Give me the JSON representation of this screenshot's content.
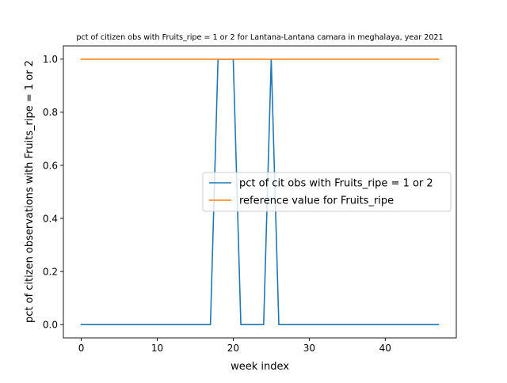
{
  "chart_data": {
    "type": "line",
    "title": "pct of citizen obs with Fruits_ripe = 1 or 2 for Lantana-Lantana camara in meghalaya, year 2021",
    "xlabel": "week index",
    "ylabel": "pct of citizen observations with Fruits_ripe = 1 or 2",
    "xlim": [
      -2.35,
      49.35
    ],
    "ylim": [
      -0.05,
      1.05
    ],
    "xticks": [
      0,
      10,
      20,
      30,
      40
    ],
    "yticks": [
      0.0,
      0.2,
      0.4,
      0.6,
      0.8,
      1.0
    ],
    "ytick_labels": [
      "0.0",
      "0.2",
      "0.4",
      "0.6",
      "0.8",
      "1.0"
    ],
    "grid": false,
    "legend_position": "center-right",
    "series": [
      {
        "name": "pct of cit obs with Fruits_ripe = 1 or 2",
        "color": "#1f77b4",
        "x": [
          0,
          1,
          2,
          3,
          4,
          5,
          6,
          7,
          8,
          9,
          10,
          11,
          12,
          13,
          14,
          15,
          16,
          17,
          18,
          19,
          20,
          21,
          22,
          23,
          24,
          25,
          26,
          27,
          28,
          29,
          30,
          31,
          32,
          33,
          34,
          35,
          36,
          37,
          38,
          39,
          40,
          41,
          42,
          43,
          44,
          45,
          46,
          47
        ],
        "values": [
          0,
          0,
          0,
          0,
          0,
          0,
          0,
          0,
          0,
          0,
          0,
          0,
          0,
          0,
          0,
          0,
          0,
          0,
          1,
          1,
          1,
          0,
          0,
          0,
          0,
          1,
          0,
          0,
          0,
          0,
          0,
          0,
          0,
          0,
          0,
          0,
          0,
          0,
          0,
          0,
          0,
          0,
          0,
          0,
          0,
          0,
          0,
          0
        ]
      },
      {
        "name": "reference value for Fruits_ripe",
        "color": "#ff7f0e",
        "x": [
          0,
          1,
          2,
          3,
          4,
          5,
          6,
          7,
          8,
          9,
          10,
          11,
          12,
          13,
          14,
          15,
          16,
          17,
          18,
          19,
          20,
          21,
          22,
          23,
          24,
          25,
          26,
          27,
          28,
          29,
          30,
          31,
          32,
          33,
          34,
          35,
          36,
          37,
          38,
          39,
          40,
          41,
          42,
          43,
          44,
          45,
          46,
          47
        ],
        "values": [
          1,
          1,
          1,
          1,
          1,
          1,
          1,
          1,
          1,
          1,
          1,
          1,
          1,
          1,
          1,
          1,
          1,
          1,
          1,
          1,
          1,
          1,
          1,
          1,
          1,
          1,
          1,
          1,
          1,
          1,
          1,
          1,
          1,
          1,
          1,
          1,
          1,
          1,
          1,
          1,
          1,
          1,
          1,
          1,
          1,
          1,
          1,
          1
        ]
      }
    ]
  }
}
